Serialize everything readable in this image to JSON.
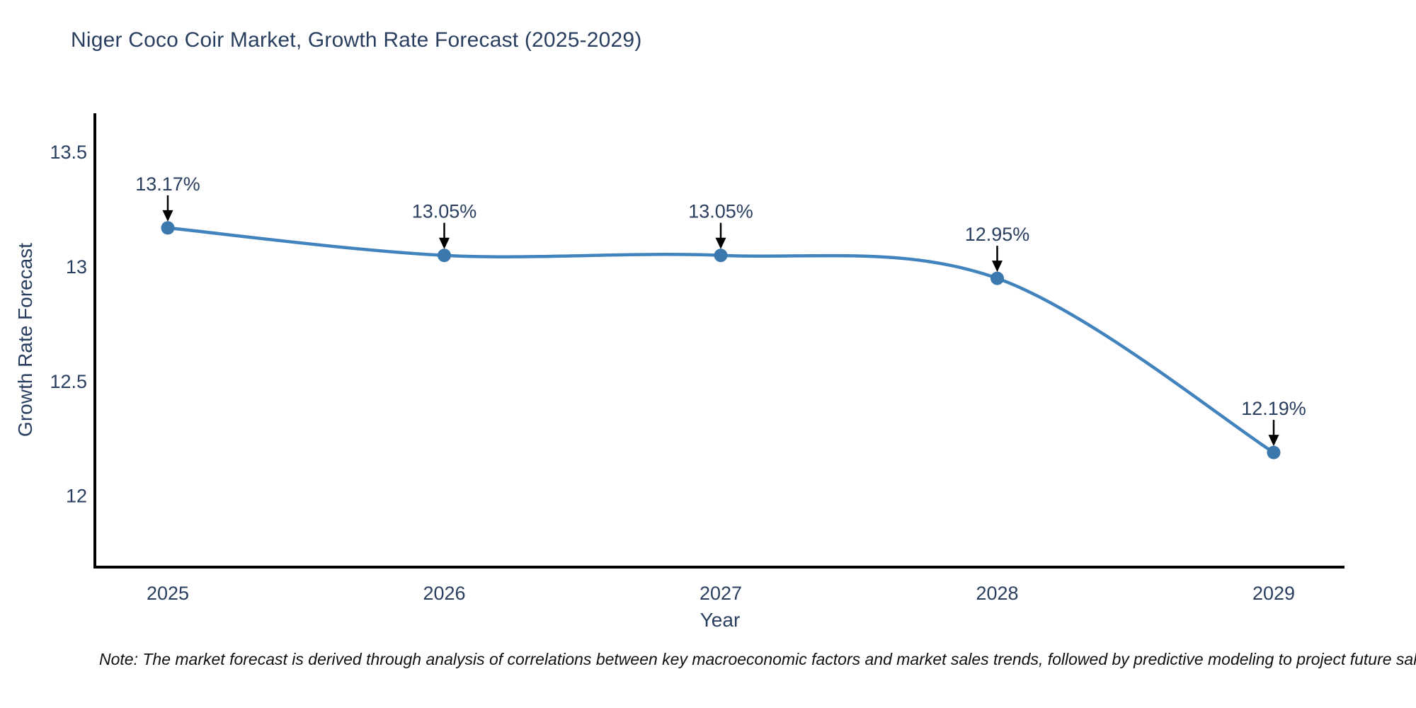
{
  "page": {
    "background": "#ffffff"
  },
  "chart_data": {
    "type": "line",
    "title": "Niger Coco Coir Market, Growth Rate Forecast (2025-2029)",
    "xlabel": "Year",
    "ylabel": "Growth Rate Forecast",
    "x": [
      "2025",
      "2026",
      "2027",
      "2028",
      "2029"
    ],
    "values": [
      13.17,
      13.05,
      13.05,
      12.95,
      12.19
    ],
    "point_labels": [
      "13.17%",
      "13.05%",
      "13.05%",
      "12.95%",
      "12.19%"
    ],
    "yticks": [
      13.5,
      13.0,
      12.5,
      12.0
    ],
    "ytick_labels": [
      "13.5",
      "13",
      "12.5",
      "12"
    ],
    "ylim": [
      11.69,
      13.67
    ],
    "grid": false,
    "legend_position": "none",
    "line_shape": "spline",
    "line_color": "#4183bd",
    "marker_color": "#3a78ae",
    "axis_color": "#000000",
    "text_color": "#2a3f5f",
    "annotation_color": "#2a3f5f",
    "arrow_color": "#000000"
  },
  "note": {
    "text": "Note: The market forecast is derived through analysis of correlations between key macroeconomic factors and market sales trends, followed by predictive modeling to project future sal"
  }
}
